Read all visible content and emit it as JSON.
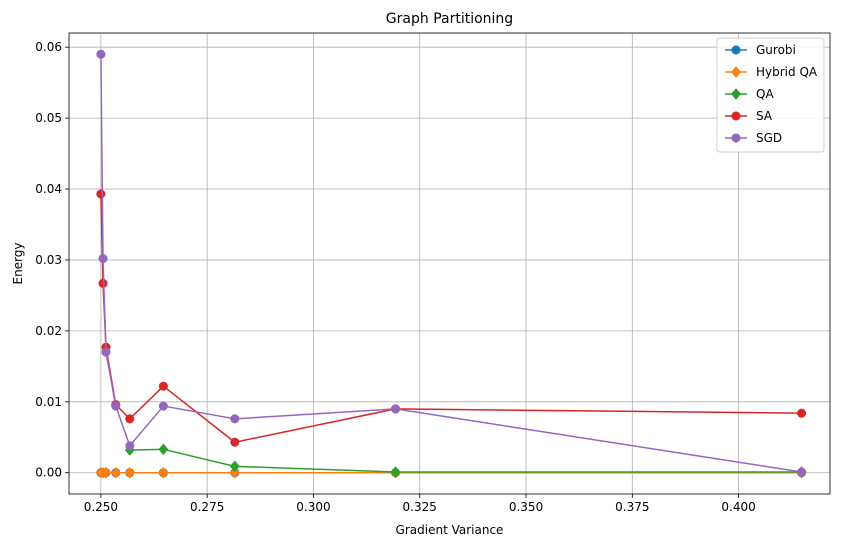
{
  "chart_data": {
    "type": "line",
    "title": "Graph Partitioning",
    "xlabel": "Gradient Variance",
    "ylabel": "Energy",
    "xlim": [
      0.2425,
      0.4215
    ],
    "ylim": [
      -0.003,
      0.062
    ],
    "xticks": [
      0.25,
      0.275,
      0.3,
      0.325,
      0.35,
      0.375,
      0.4
    ],
    "xtick_labels": [
      "0.250",
      "0.275",
      "0.300",
      "0.325",
      "0.350",
      "0.375",
      "0.400"
    ],
    "yticks": [
      0.0,
      0.01,
      0.02,
      0.03,
      0.04,
      0.05,
      0.06
    ],
    "ytick_labels": [
      "0.00",
      "0.01",
      "0.02",
      "0.03",
      "0.04",
      "0.05",
      "0.06"
    ],
    "grid": true,
    "legend_position": "top-right",
    "series": [
      {
        "name": "Gurobi",
        "color": "#1f77b4",
        "marker": "circle",
        "x": [
          0.25,
          0.2505,
          0.2512,
          0.2535,
          0.2568,
          0.2647,
          0.2815,
          0.3193,
          0.4148
        ],
        "y": [
          0,
          0,
          0,
          0,
          0,
          0,
          0,
          0,
          0
        ]
      },
      {
        "name": "Hybrid QA",
        "color": "#ff7f0e",
        "marker": "diamond",
        "x": [
          0.25,
          0.2505,
          0.2512,
          0.2535,
          0.2568,
          0.2647,
          0.2815,
          0.3193,
          0.4148
        ],
        "y": [
          0,
          0,
          0,
          0,
          0,
          0,
          0,
          0,
          0
        ]
      },
      {
        "name": "QA",
        "color": "#2ca02c",
        "marker": "diamond",
        "x": [
          0.2568,
          0.2647,
          0.2815,
          0.3193,
          0.4148
        ],
        "y": [
          0.0032,
          0.0033,
          0.0009,
          0.0001,
          0.0001
        ]
      },
      {
        "name": "SA",
        "color": "#d62728",
        "marker": "circle",
        "x": [
          0.25,
          0.2505,
          0.2512,
          0.2535,
          0.2568,
          0.2647,
          0.2815,
          0.3193,
          0.4148
        ],
        "y": [
          0.0393,
          0.0267,
          0.0177,
          0.0096,
          0.0076,
          0.0122,
          0.0043,
          0.009,
          0.0084
        ]
      },
      {
        "name": "SGD",
        "color": "#9467bd",
        "marker": "circle",
        "x": [
          0.25,
          0.2505,
          0.2512,
          0.2535,
          0.2568,
          0.2647,
          0.2815,
          0.3193,
          0.4148
        ],
        "y": [
          0.059,
          0.0302,
          0.017,
          0.0094,
          0.0038,
          0.0094,
          0.0076,
          0.009,
          0.0001
        ]
      }
    ]
  }
}
